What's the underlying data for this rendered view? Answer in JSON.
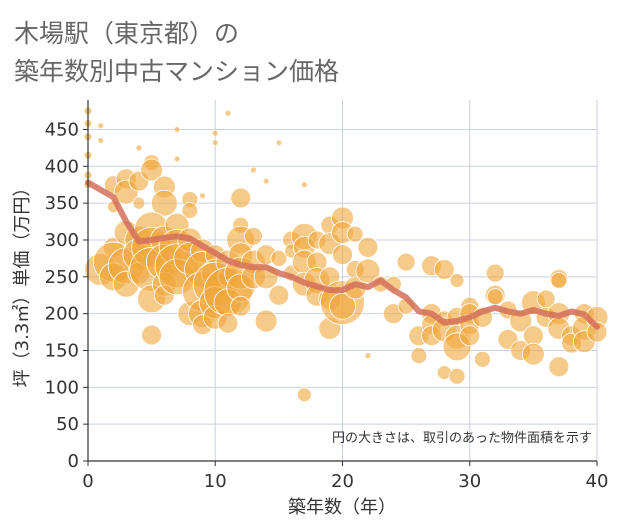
{
  "title_line1": "木場駅（東京都）の",
  "title_line2": "築年数別中古マンション価格",
  "note": "円の大きさは、取引のあった物件面積を示す",
  "colors": {
    "bubble": "#f0a63b",
    "line": "#d4705a",
    "grid": "#c8d0e0",
    "axis": "#333333"
  },
  "chart_data": {
    "type": "scatter",
    "xlabel": "築年数（年）",
    "ylabel": "坪（3.3㎡）単価（万円）",
    "xlim": [
      0,
      40
    ],
    "ylim": [
      0,
      490
    ],
    "xticks": [
      0,
      10,
      20,
      30,
      40
    ],
    "yticks": [
      0,
      50,
      100,
      150,
      200,
      250,
      300,
      350,
      400,
      450
    ],
    "scatter_points": [
      {
        "x": 0,
        "y": 475,
        "s": 4
      },
      {
        "x": 0,
        "y": 458,
        "s": 4
      },
      {
        "x": 0,
        "y": 440,
        "s": 4
      },
      {
        "x": 0,
        "y": 415,
        "s": 4
      },
      {
        "x": 0,
        "y": 388,
        "s": 4
      },
      {
        "x": 0,
        "y": 375,
        "s": 4
      },
      {
        "x": 1,
        "y": 455,
        "s": 3
      },
      {
        "x": 1,
        "y": 435,
        "s": 3
      },
      {
        "x": 2,
        "y": 375,
        "s": 9
      },
      {
        "x": 2,
        "y": 345,
        "s": 6
      },
      {
        "x": 3,
        "y": 383,
        "s": 10
      },
      {
        "x": 3,
        "y": 365,
        "s": 12
      },
      {
        "x": 4,
        "y": 425,
        "s": 3
      },
      {
        "x": 4,
        "y": 380,
        "s": 10
      },
      {
        "x": 4,
        "y": 350,
        "s": 6
      },
      {
        "x": 5,
        "y": 405,
        "s": 8
      },
      {
        "x": 5,
        "y": 395,
        "s": 11
      },
      {
        "x": 6,
        "y": 372,
        "s": 11
      },
      {
        "x": 6,
        "y": 350,
        "s": 13
      },
      {
        "x": 7,
        "y": 450,
        "s": 3
      },
      {
        "x": 7,
        "y": 410,
        "s": 3
      },
      {
        "x": 8,
        "y": 355,
        "s": 8
      },
      {
        "x": 8,
        "y": 340,
        "s": 8
      },
      {
        "x": 9,
        "y": 360,
        "s": 3
      },
      {
        "x": 10,
        "y": 445,
        "s": 3
      },
      {
        "x": 10,
        "y": 432,
        "s": 3
      },
      {
        "x": 11,
        "y": 472,
        "s": 3
      },
      {
        "x": 12,
        "y": 357,
        "s": 10
      },
      {
        "x": 13,
        "y": 395,
        "s": 3
      },
      {
        "x": 14,
        "y": 380,
        "s": 3
      },
      {
        "x": 15,
        "y": 432,
        "s": 3
      },
      {
        "x": 17,
        "y": 375,
        "s": 3
      },
      {
        "x": 1,
        "y": 260,
        "s": 16
      },
      {
        "x": 2,
        "y": 290,
        "s": 10
      },
      {
        "x": 2,
        "y": 270,
        "s": 20
      },
      {
        "x": 2,
        "y": 250,
        "s": 14
      },
      {
        "x": 3,
        "y": 310,
        "s": 12
      },
      {
        "x": 3,
        "y": 265,
        "s": 18
      },
      {
        "x": 3,
        "y": 240,
        "s": 13
      },
      {
        "x": 4,
        "y": 300,
        "s": 14
      },
      {
        "x": 4,
        "y": 280,
        "s": 16
      },
      {
        "x": 4,
        "y": 255,
        "s": 11
      },
      {
        "x": 5,
        "y": 315,
        "s": 17
      },
      {
        "x": 5,
        "y": 290,
        "s": 20
      },
      {
        "x": 5,
        "y": 260,
        "s": 22
      },
      {
        "x": 5,
        "y": 220,
        "s": 14
      },
      {
        "x": 5,
        "y": 171,
        "s": 10
      },
      {
        "x": 6,
        "y": 300,
        "s": 14
      },
      {
        "x": 6,
        "y": 270,
        "s": 18
      },
      {
        "x": 6,
        "y": 240,
        "s": 12
      },
      {
        "x": 6,
        "y": 225,
        "s": 10
      },
      {
        "x": 7,
        "y": 320,
        "s": 12
      },
      {
        "x": 7,
        "y": 290,
        "s": 18
      },
      {
        "x": 7,
        "y": 265,
        "s": 22
      },
      {
        "x": 7,
        "y": 250,
        "s": 18
      },
      {
        "x": 8,
        "y": 300,
        "s": 12
      },
      {
        "x": 8,
        "y": 275,
        "s": 16
      },
      {
        "x": 8,
        "y": 200,
        "s": 12
      },
      {
        "x": 9,
        "y": 285,
        "s": 12
      },
      {
        "x": 9,
        "y": 260,
        "s": 18
      },
      {
        "x": 9,
        "y": 230,
        "s": 20
      },
      {
        "x": 9,
        "y": 200,
        "s": 14
      },
      {
        "x": 9,
        "y": 185,
        "s": 10
      },
      {
        "x": 10,
        "y": 280,
        "s": 10
      },
      {
        "x": 10,
        "y": 255,
        "s": 14
      },
      {
        "x": 10,
        "y": 240,
        "s": 22
      },
      {
        "x": 10,
        "y": 215,
        "s": 16
      },
      {
        "x": 10,
        "y": 195,
        "s": 12
      },
      {
        "x": 11,
        "y": 270,
        "s": 12
      },
      {
        "x": 11,
        "y": 250,
        "s": 10
      },
      {
        "x": 11,
        "y": 230,
        "s": 24
      },
      {
        "x": 11,
        "y": 215,
        "s": 14
      },
      {
        "x": 11,
        "y": 187,
        "s": 10
      },
      {
        "x": 12,
        "y": 320,
        "s": 8
      },
      {
        "x": 12,
        "y": 300,
        "s": 14
      },
      {
        "x": 12,
        "y": 280,
        "s": 12
      },
      {
        "x": 12,
        "y": 255,
        "s": 16
      },
      {
        "x": 12,
        "y": 235,
        "s": 14
      },
      {
        "x": 12,
        "y": 210,
        "s": 10
      },
      {
        "x": 13,
        "y": 305,
        "s": 9
      },
      {
        "x": 13,
        "y": 270,
        "s": 12
      },
      {
        "x": 13,
        "y": 250,
        "s": 12
      },
      {
        "x": 14,
        "y": 280,
        "s": 10
      },
      {
        "x": 14,
        "y": 250,
        "s": 12
      },
      {
        "x": 14,
        "y": 190,
        "s": 11
      },
      {
        "x": 15,
        "y": 275,
        "s": 8
      },
      {
        "x": 15,
        "y": 225,
        "s": 10
      },
      {
        "x": 16,
        "y": 300,
        "s": 9
      },
      {
        "x": 16,
        "y": 285,
        "s": 7
      },
      {
        "x": 16,
        "y": 255,
        "s": 8
      },
      {
        "x": 17,
        "y": 305,
        "s": 13
      },
      {
        "x": 17,
        "y": 290,
        "s": 11
      },
      {
        "x": 17,
        "y": 270,
        "s": 12
      },
      {
        "x": 17,
        "y": 240,
        "s": 12
      },
      {
        "x": 17,
        "y": 90,
        "s": 7
      },
      {
        "x": 18,
        "y": 300,
        "s": 9
      },
      {
        "x": 18,
        "y": 270,
        "s": 10
      },
      {
        "x": 18,
        "y": 245,
        "s": 13
      },
      {
        "x": 18,
        "y": 225,
        "s": 11
      },
      {
        "x": 19,
        "y": 320,
        "s": 9
      },
      {
        "x": 19,
        "y": 295,
        "s": 11
      },
      {
        "x": 19,
        "y": 250,
        "s": 10
      },
      {
        "x": 19,
        "y": 220,
        "s": 11
      },
      {
        "x": 19,
        "y": 180,
        "s": 11
      },
      {
        "x": 20,
        "y": 330,
        "s": 11
      },
      {
        "x": 20,
        "y": 310,
        "s": 11
      },
      {
        "x": 20,
        "y": 280,
        "s": 10
      },
      {
        "x": 20,
        "y": 215,
        "s": 22
      },
      {
        "x": 20,
        "y": 210,
        "s": 13
      },
      {
        "x": 21,
        "y": 308,
        "s": 8
      },
      {
        "x": 21,
        "y": 260,
        "s": 9
      },
      {
        "x": 21,
        "y": 235,
        "s": 11
      },
      {
        "x": 22,
        "y": 290,
        "s": 10
      },
      {
        "x": 22,
        "y": 258,
        "s": 12
      },
      {
        "x": 22,
        "y": 143,
        "s": 3
      },
      {
        "x": 23,
        "y": 240,
        "s": 8
      },
      {
        "x": 24,
        "y": 240,
        "s": 8
      },
      {
        "x": 24,
        "y": 200,
        "s": 10
      },
      {
        "x": 25,
        "y": 270,
        "s": 9
      },
      {
        "x": 25,
        "y": 210,
        "s": 8
      },
      {
        "x": 26,
        "y": 170,
        "s": 10
      },
      {
        "x": 26,
        "y": 143,
        "s": 8
      },
      {
        "x": 27,
        "y": 265,
        "s": 10
      },
      {
        "x": 27,
        "y": 200,
        "s": 10
      },
      {
        "x": 27,
        "y": 185,
        "s": 10
      },
      {
        "x": 27,
        "y": 170,
        "s": 10
      },
      {
        "x": 28,
        "y": 260,
        "s": 10
      },
      {
        "x": 28,
        "y": 193,
        "s": 8
      },
      {
        "x": 28,
        "y": 178,
        "s": 12
      },
      {
        "x": 28,
        "y": 120,
        "s": 7
      },
      {
        "x": 29,
        "y": 245,
        "s": 7
      },
      {
        "x": 29,
        "y": 195,
        "s": 10
      },
      {
        "x": 29,
        "y": 168,
        "s": 12
      },
      {
        "x": 29,
        "y": 155,
        "s": 14
      },
      {
        "x": 29,
        "y": 115,
        "s": 8
      },
      {
        "x": 30,
        "y": 210,
        "s": 9
      },
      {
        "x": 30,
        "y": 200,
        "s": 10
      },
      {
        "x": 30,
        "y": 185,
        "s": 10
      },
      {
        "x": 30,
        "y": 170,
        "s": 10
      },
      {
        "x": 31,
        "y": 195,
        "s": 10
      },
      {
        "x": 31,
        "y": 138,
        "s": 8
      },
      {
        "x": 32,
        "y": 255,
        "s": 9
      },
      {
        "x": 32,
        "y": 225,
        "s": 10
      },
      {
        "x": 32,
        "y": 223,
        "s": 8
      },
      {
        "x": 33,
        "y": 205,
        "s": 9
      },
      {
        "x": 33,
        "y": 165,
        "s": 10
      },
      {
        "x": 34,
        "y": 190,
        "s": 11
      },
      {
        "x": 34,
        "y": 150,
        "s": 10
      },
      {
        "x": 35,
        "y": 215,
        "s": 12
      },
      {
        "x": 35,
        "y": 170,
        "s": 10
      },
      {
        "x": 35,
        "y": 145,
        "s": 11
      },
      {
        "x": 36,
        "y": 220,
        "s": 9
      },
      {
        "x": 36,
        "y": 195,
        "s": 10
      },
      {
        "x": 37,
        "y": 248,
        "s": 9
      },
      {
        "x": 37,
        "y": 245,
        "s": 8
      },
      {
        "x": 37,
        "y": 200,
        "s": 11
      },
      {
        "x": 37,
        "y": 180,
        "s": 11
      },
      {
        "x": 37,
        "y": 128,
        "s": 10
      },
      {
        "x": 38,
        "y": 170,
        "s": 10
      },
      {
        "x": 38,
        "y": 160,
        "s": 10
      },
      {
        "x": 39,
        "y": 200,
        "s": 10
      },
      {
        "x": 39,
        "y": 180,
        "s": 12
      },
      {
        "x": 39,
        "y": 162,
        "s": 11
      },
      {
        "x": 40,
        "y": 195,
        "s": 11
      },
      {
        "x": 40,
        "y": 175,
        "s": 10
      }
    ],
    "line": {
      "x": [
        0,
        1,
        2,
        3,
        4,
        5,
        6,
        7,
        8,
        9,
        10,
        11,
        12,
        13,
        14,
        15,
        16,
        17,
        18,
        19,
        20,
        21,
        22,
        23,
        24,
        25,
        26,
        27,
        28,
        29,
        30,
        31,
        32,
        33,
        34,
        35,
        36,
        37,
        38,
        39,
        40
      ],
      "y": [
        378,
        368,
        358,
        325,
        298,
        300,
        303,
        305,
        302,
        292,
        282,
        272,
        266,
        263,
        263,
        255,
        250,
        242,
        237,
        232,
        232,
        240,
        236,
        245,
        232,
        222,
        203,
        200,
        188,
        190,
        195,
        203,
        208,
        203,
        200,
        205,
        200,
        197,
        203,
        199,
        182
      ]
    }
  }
}
